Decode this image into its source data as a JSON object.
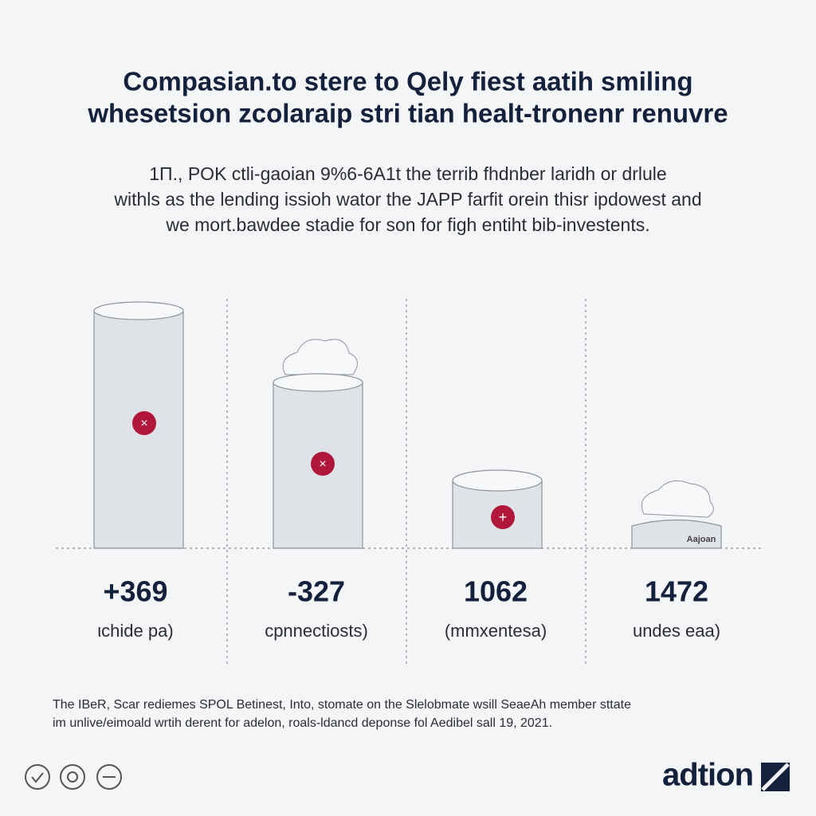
{
  "header": {
    "title": [
      "Compasian.to stere to Qely fiest aatih smiling",
      "whesetsion zcolaraip stri tian healt-tronenr renuvre"
    ],
    "subtitle": [
      "1Π., POK ctli-gaoian 9%6-6A1t the terrib fhdnber laridh or drlule",
      "withls as the lending issioh wator the JAPP farfit orein thisr ipdowest and",
      "we mort.bawdee stadie for son for figh entiht bib-investents."
    ]
  },
  "panels": [
    {
      "value": "+369",
      "label": "ιchide pa)"
    },
    {
      "value": "-327",
      "label": "cpnnectiosts)"
    },
    {
      "value": "1062",
      "label": "(mmxentesa)"
    },
    {
      "value": "1472",
      "label": "undes eaa)",
      "tag": "Aajoan"
    }
  ],
  "footer": [
    "The IBeR, Scar rediemes SPOL Betinest, Into, stomate on the Slelobmate wsill SeaeAh member sttate",
    "im unlive/eimoald wrtih derent for adelon, roals-ldancd deponse fol Aedibel sall 19, 2021."
  ],
  "logo": "adtion"
}
